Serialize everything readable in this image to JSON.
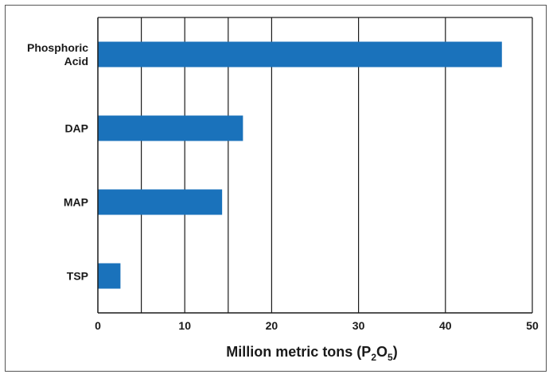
{
  "chart_data": {
    "type": "bar",
    "orientation": "horizontal",
    "categories": [
      [
        "Phosphoric",
        "Acid"
      ],
      [
        "DAP"
      ],
      [
        "MAP"
      ],
      [
        "TSP"
      ]
    ],
    "values": [
      46.5,
      16.7,
      14.3,
      2.6
    ],
    "xlabel": {
      "text": "Million metric tons (P",
      "sub1": "2",
      "mid": "O",
      "sub2": "5",
      "end": ")"
    },
    "xlim": [
      0,
      50
    ],
    "xticks": [
      0,
      10,
      20,
      30,
      40,
      50
    ],
    "gridlines": [
      5,
      10,
      15,
      20,
      30,
      40,
      50
    ],
    "grid": true,
    "bar_color": "#1a72bb",
    "grid_color": "#1a1a1a"
  }
}
